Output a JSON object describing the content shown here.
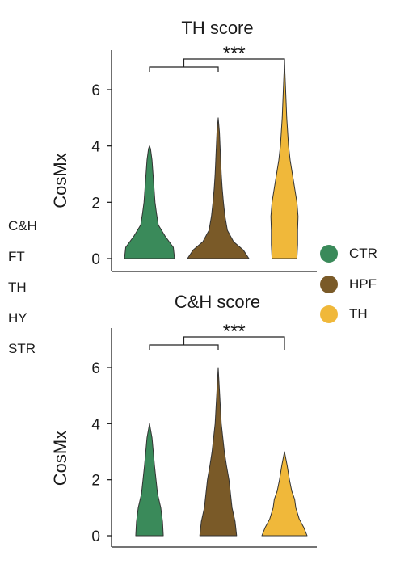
{
  "side_labels": [
    "C&H",
    "FT",
    "TH",
    "HY",
    "STR"
  ],
  "legend": [
    {
      "label": "CTR",
      "color": "#3a8a5a"
    },
    {
      "label": "HPF",
      "color": "#7a5a28"
    },
    {
      "label": "TH",
      "color": "#f0b83a"
    }
  ],
  "chart_data": [
    {
      "type": "violin",
      "title": "TH score",
      "ylabel": "CosMx",
      "xlabel": "",
      "ylim": [
        0,
        7.2
      ],
      "yticks": [
        0,
        2,
        4,
        6
      ],
      "categories": [
        "CTR",
        "HPF",
        "TH"
      ],
      "colors": [
        "#3a8a5a",
        "#7a5a28",
        "#f0b83a"
      ],
      "significance": "***",
      "violins": [
        {
          "category": "CTR",
          "max": 4.0,
          "profile": [
            [
              0,
              1.0
            ],
            [
              0.4,
              0.95
            ],
            [
              0.8,
              0.62
            ],
            [
              1.2,
              0.35
            ],
            [
              1.6,
              0.28
            ],
            [
              2.0,
              0.22
            ],
            [
              2.5,
              0.18
            ],
            [
              3.0,
              0.14
            ],
            [
              3.5,
              0.1
            ],
            [
              3.9,
              0.04
            ],
            [
              4.0,
              0.0
            ]
          ]
        },
        {
          "category": "HPF",
          "max": 5.0,
          "profile": [
            [
              0,
              1.0
            ],
            [
              0.3,
              0.82
            ],
            [
              0.6,
              0.5
            ],
            [
              1.0,
              0.3
            ],
            [
              1.5,
              0.22
            ],
            [
              2.0,
              0.17
            ],
            [
              2.5,
              0.13
            ],
            [
              3.0,
              0.1
            ],
            [
              3.5,
              0.08
            ],
            [
              4.0,
              0.06
            ],
            [
              4.5,
              0.04
            ],
            [
              5.0,
              0.0
            ]
          ]
        },
        {
          "category": "TH",
          "max": 7.0,
          "profile": [
            [
              0,
              0.55
            ],
            [
              0.5,
              0.58
            ],
            [
              1.0,
              0.58
            ],
            [
              1.5,
              0.6
            ],
            [
              2.0,
              0.55
            ],
            [
              2.5,
              0.45
            ],
            [
              3.0,
              0.35
            ],
            [
              3.5,
              0.25
            ],
            [
              4.0,
              0.18
            ],
            [
              5.0,
              0.1
            ],
            [
              6.0,
              0.05
            ],
            [
              7.0,
              0.0
            ]
          ]
        }
      ]
    },
    {
      "type": "violin",
      "title": "C&H score",
      "ylabel": "CosMx",
      "xlabel": "",
      "ylim": [
        0,
        7.2
      ],
      "yticks": [
        0,
        2,
        4,
        6
      ],
      "categories": [
        "CTR",
        "HPF",
        "TH"
      ],
      "colors": [
        "#3a8a5a",
        "#7a5a28",
        "#f0b83a"
      ],
      "significance": "***",
      "violins": [
        {
          "category": "CTR",
          "max": 4.0,
          "profile": [
            [
              0,
              0.55
            ],
            [
              0.5,
              0.52
            ],
            [
              1.0,
              0.45
            ],
            [
              1.5,
              0.32
            ],
            [
              2.0,
              0.26
            ],
            [
              2.5,
              0.2
            ],
            [
              3.0,
              0.15
            ],
            [
              3.5,
              0.1
            ],
            [
              4.0,
              0.0
            ]
          ]
        },
        {
          "category": "HPF",
          "max": 6.0,
          "profile": [
            [
              0,
              0.6
            ],
            [
              0.5,
              0.55
            ],
            [
              1.0,
              0.45
            ],
            [
              1.5,
              0.4
            ],
            [
              2.0,
              0.35
            ],
            [
              2.5,
              0.27
            ],
            [
              3.0,
              0.2
            ],
            [
              4.0,
              0.1
            ],
            [
              5.0,
              0.05
            ],
            [
              6.0,
              0.0
            ]
          ]
        },
        {
          "category": "TH",
          "max": 3.0,
          "profile": [
            [
              0,
              1.0
            ],
            [
              0.3,
              0.85
            ],
            [
              0.6,
              0.65
            ],
            [
              1.0,
              0.5
            ],
            [
              1.3,
              0.45
            ],
            [
              1.6,
              0.32
            ],
            [
              2.0,
              0.22
            ],
            [
              2.5,
              0.12
            ],
            [
              3.0,
              0.0
            ]
          ]
        }
      ]
    }
  ]
}
